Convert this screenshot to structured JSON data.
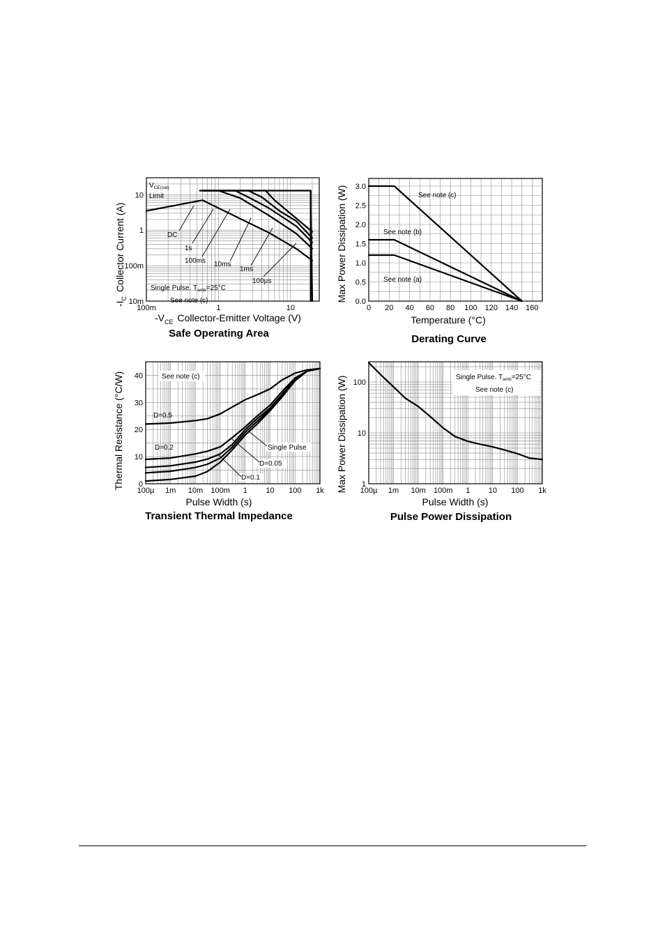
{
  "chart_data": [
    {
      "id": "soa",
      "type": "line",
      "title": "Safe Operating Area",
      "xlabel": "-V",
      "xlabel_sub": "CE",
      "xlabel_rest": "Collector-Emitter Voltage (V)",
      "ylabel": "-I",
      "ylabel_sub": "C",
      "ylabel_rest": "Collector Current (A)",
      "x_scale": "log",
      "y_scale": "log",
      "xlim": [
        0.1,
        25
      ],
      "ylim": [
        0.01,
        30
      ],
      "x_ticks": [
        {
          "v": 0.1,
          "label": "100m"
        },
        {
          "v": 1,
          "label": "1"
        },
        {
          "v": 10,
          "label": "10"
        }
      ],
      "y_ticks": [
        {
          "v": 0.01,
          "label": "10m"
        },
        {
          "v": 0.1,
          "label": "100m"
        },
        {
          "v": 1,
          "label": "1"
        },
        {
          "v": 10,
          "label": "10"
        }
      ],
      "series": [
        {
          "name": "DC",
          "x": [
            0.1,
            0.6,
            1,
            5,
            12,
            20
          ],
          "y": [
            3.5,
            7,
            4.2,
            0.85,
            0.3,
            0.14
          ]
        },
        {
          "name": "1s",
          "x": [
            0.6,
            1,
            2,
            5,
            12,
            20
          ],
          "y": [
            13,
            13,
            8,
            2.6,
            0.8,
            0.3
          ]
        },
        {
          "name": "100ms",
          "x": [
            0.55,
            1.7,
            2.6,
            5,
            12,
            20
          ],
          "y": [
            13,
            13,
            8.5,
            4.2,
            1.3,
            0.45
          ]
        },
        {
          "name": "10ms",
          "x": [
            0.6,
            2.6,
            4,
            7,
            12,
            20
          ],
          "y": [
            13,
            13,
            8.5,
            3.5,
            1.8,
            0.6
          ]
        },
        {
          "name": "1ms",
          "x": [
            0.6,
            4.5,
            6,
            9,
            20
          ],
          "y": [
            13,
            13,
            7,
            3.5,
            0.9
          ]
        },
        {
          "name": "100µs",
          "x": [
            0.6,
            19,
            19,
            20
          ],
          "y": [
            13,
            13,
            6,
            0.01
          ]
        }
      ],
      "annotations": {
        "vce_limit_v": "V",
        "vce_limit_sub": "CE(sat)",
        "vce_limit_word": "Limit",
        "dc": "DC",
        "one_s": "1s",
        "hundred_ms": "100ms",
        "ten_ms": "10ms",
        "one_ms": "1ms",
        "hundred_us": "100µs",
        "pulse_a": "Single Pulse. T",
        "pulse_sub": "amb",
        "pulse_b": "=25°C",
        "note": "See note (c)"
      }
    },
    {
      "id": "derating",
      "type": "line",
      "title": "Derating Curve",
      "xlabel": "Temperature (°C)",
      "ylabel": "Max Power Dissipation (W)",
      "x_scale": "linear",
      "y_scale": "linear",
      "xlim": [
        0,
        170
      ],
      "ylim": [
        0,
        3.2
      ],
      "x_ticks": [
        {
          "v": 0,
          "label": "0"
        },
        {
          "v": 20,
          "label": "20"
        },
        {
          "v": 40,
          "label": "40"
        },
        {
          "v": 60,
          "label": "60"
        },
        {
          "v": 80,
          "label": "80"
        },
        {
          "v": 100,
          "label": "100"
        },
        {
          "v": 120,
          "label": "120"
        },
        {
          "v": 140,
          "label": "140"
        },
        {
          "v": 160,
          "label": "160"
        }
      ],
      "y_ticks": [
        {
          "v": 0,
          "label": "0.0"
        },
        {
          "v": 0.5,
          "label": "0.5"
        },
        {
          "v": 1,
          "label": "1.0"
        },
        {
          "v": 1.5,
          "label": "1.5"
        },
        {
          "v": 2,
          "label": "2.0"
        },
        {
          "v": 2.5,
          "label": "2.5"
        },
        {
          "v": 3,
          "label": "3.0"
        }
      ],
      "series": [
        {
          "name": "See note (c)",
          "x": [
            0,
            25,
            150
          ],
          "y": [
            3.0,
            3.0,
            0
          ]
        },
        {
          "name": "See note (b)",
          "x": [
            0,
            25,
            150
          ],
          "y": [
            1.6,
            1.6,
            0
          ]
        },
        {
          "name": "See note (a)",
          "x": [
            0,
            25,
            150
          ],
          "y": [
            1.2,
            1.2,
            0
          ]
        }
      ],
      "annotations": {
        "note_c": "See note (c)",
        "note_b": "See note (b)",
        "note_a": "See note (a)"
      }
    },
    {
      "id": "thermal",
      "type": "line",
      "title": "Transient Thermal Impedance",
      "xlabel": "Pulse Width (s)",
      "ylabel": "Thermal Resistance (°C/W)",
      "x_scale": "log",
      "y_scale": "linear",
      "xlim": [
        0.0001,
        1000
      ],
      "ylim": [
        0,
        45
      ],
      "x_ticks": [
        {
          "v": 0.0001,
          "label": "100µ"
        },
        {
          "v": 0.001,
          "label": "1m"
        },
        {
          "v": 0.01,
          "label": "10m"
        },
        {
          "v": 0.1,
          "label": "100m"
        },
        {
          "v": 1,
          "label": "1"
        },
        {
          "v": 10,
          "label": "10"
        },
        {
          "v": 100,
          "label": "100"
        },
        {
          "v": 1000,
          "label": "1k"
        }
      ],
      "y_ticks": [
        {
          "v": 0,
          "label": "0"
        },
        {
          "v": 10,
          "label": "10"
        },
        {
          "v": 20,
          "label": "20"
        },
        {
          "v": 30,
          "label": "30"
        },
        {
          "v": 40,
          "label": "40"
        }
      ],
      "series": [
        {
          "name": "D=0.5",
          "x": [
            0.0001,
            0.001,
            0.01,
            0.03,
            0.1,
            0.3,
            1,
            3,
            10,
            30,
            100,
            300,
            1000
          ],
          "y": [
            22,
            22.4,
            23.3,
            24,
            25.8,
            28.3,
            31,
            32.8,
            35,
            38.3,
            40.8,
            42,
            42.5
          ]
        },
        {
          "name": "D=0.2",
          "x": [
            0.0001,
            0.001,
            0.01,
            0.03,
            0.1,
            0.3,
            1,
            3,
            10,
            30,
            100,
            300,
            1000
          ],
          "y": [
            9,
            9.5,
            11,
            12,
            13.6,
            17,
            21,
            25,
            29,
            34,
            39,
            41.5,
            42.5
          ]
        },
        {
          "name": "D=0.1",
          "x": [
            0.0001,
            0.001,
            0.01,
            0.03,
            0.1,
            0.3,
            1,
            3,
            10,
            30,
            100,
            300,
            1000
          ],
          "y": [
            6,
            6.6,
            8,
            9.1,
            11,
            14.5,
            20,
            24,
            28,
            33,
            38.5,
            41.5,
            42.5
          ]
        },
        {
          "name": "D=0.05",
          "x": [
            0.0001,
            0.001,
            0.01,
            0.03,
            0.1,
            0.3,
            1,
            3,
            10,
            30,
            100,
            300,
            1000
          ],
          "y": [
            4,
            4.6,
            6,
            7.2,
            9.5,
            13.5,
            19,
            23,
            27.5,
            32.5,
            38,
            41.5,
            42.5
          ]
        },
        {
          "name": "Single Pulse",
          "x": [
            0.0001,
            0.001,
            0.01,
            0.03,
            0.1,
            0.3,
            1,
            3,
            10,
            30,
            100,
            300,
            1000
          ],
          "y": [
            1,
            1.6,
            2.8,
            4.5,
            8,
            12.5,
            18,
            22,
            27,
            32,
            38,
            41.5,
            42.5
          ]
        }
      ],
      "annotations": {
        "note": "See note (c)",
        "d05": "D=0.5",
        "d02": "D=0.2",
        "d01": "D=0.1",
        "d005": "D=0.05",
        "single": "Single Pulse"
      }
    },
    {
      "id": "pulse",
      "type": "line",
      "title": "Pulse Power Dissipation",
      "xlabel": "Pulse Width (s)",
      "ylabel": "Max Power Dissipation (W)",
      "x_scale": "log",
      "y_scale": "log",
      "xlim": [
        0.0001,
        1000
      ],
      "ylim": [
        1,
        250
      ],
      "x_ticks": [
        {
          "v": 0.0001,
          "label": "100µ"
        },
        {
          "v": 0.001,
          "label": "1m"
        },
        {
          "v": 0.01,
          "label": "10m"
        },
        {
          "v": 0.1,
          "label": "100m"
        },
        {
          "v": 1,
          "label": "1"
        },
        {
          "v": 10,
          "label": "10"
        },
        {
          "v": 100,
          "label": "100"
        },
        {
          "v": 1000,
          "label": "1k"
        }
      ],
      "y_ticks": [
        {
          "v": 1,
          "label": "1"
        },
        {
          "v": 10,
          "label": "10"
        },
        {
          "v": 100,
          "label": "100"
        }
      ],
      "series": [
        {
          "name": "Single Pulse",
          "x": [
            0.0001,
            0.0003,
            0.001,
            0.003,
            0.01,
            0.03,
            0.1,
            0.3,
            1,
            3,
            10,
            30,
            100,
            300,
            1000
          ],
          "y": [
            240,
            140,
            80,
            48,
            33,
            21,
            12.5,
            8.5,
            6.8,
            6,
            5.3,
            4.6,
            3.9,
            3.2,
            3
          ]
        }
      ],
      "annotations": {
        "pulse_a": "Single Pulse. T",
        "pulse_sub": "amb",
        "pulse_b": "=25°C",
        "note": "See note (c)"
      }
    }
  ]
}
